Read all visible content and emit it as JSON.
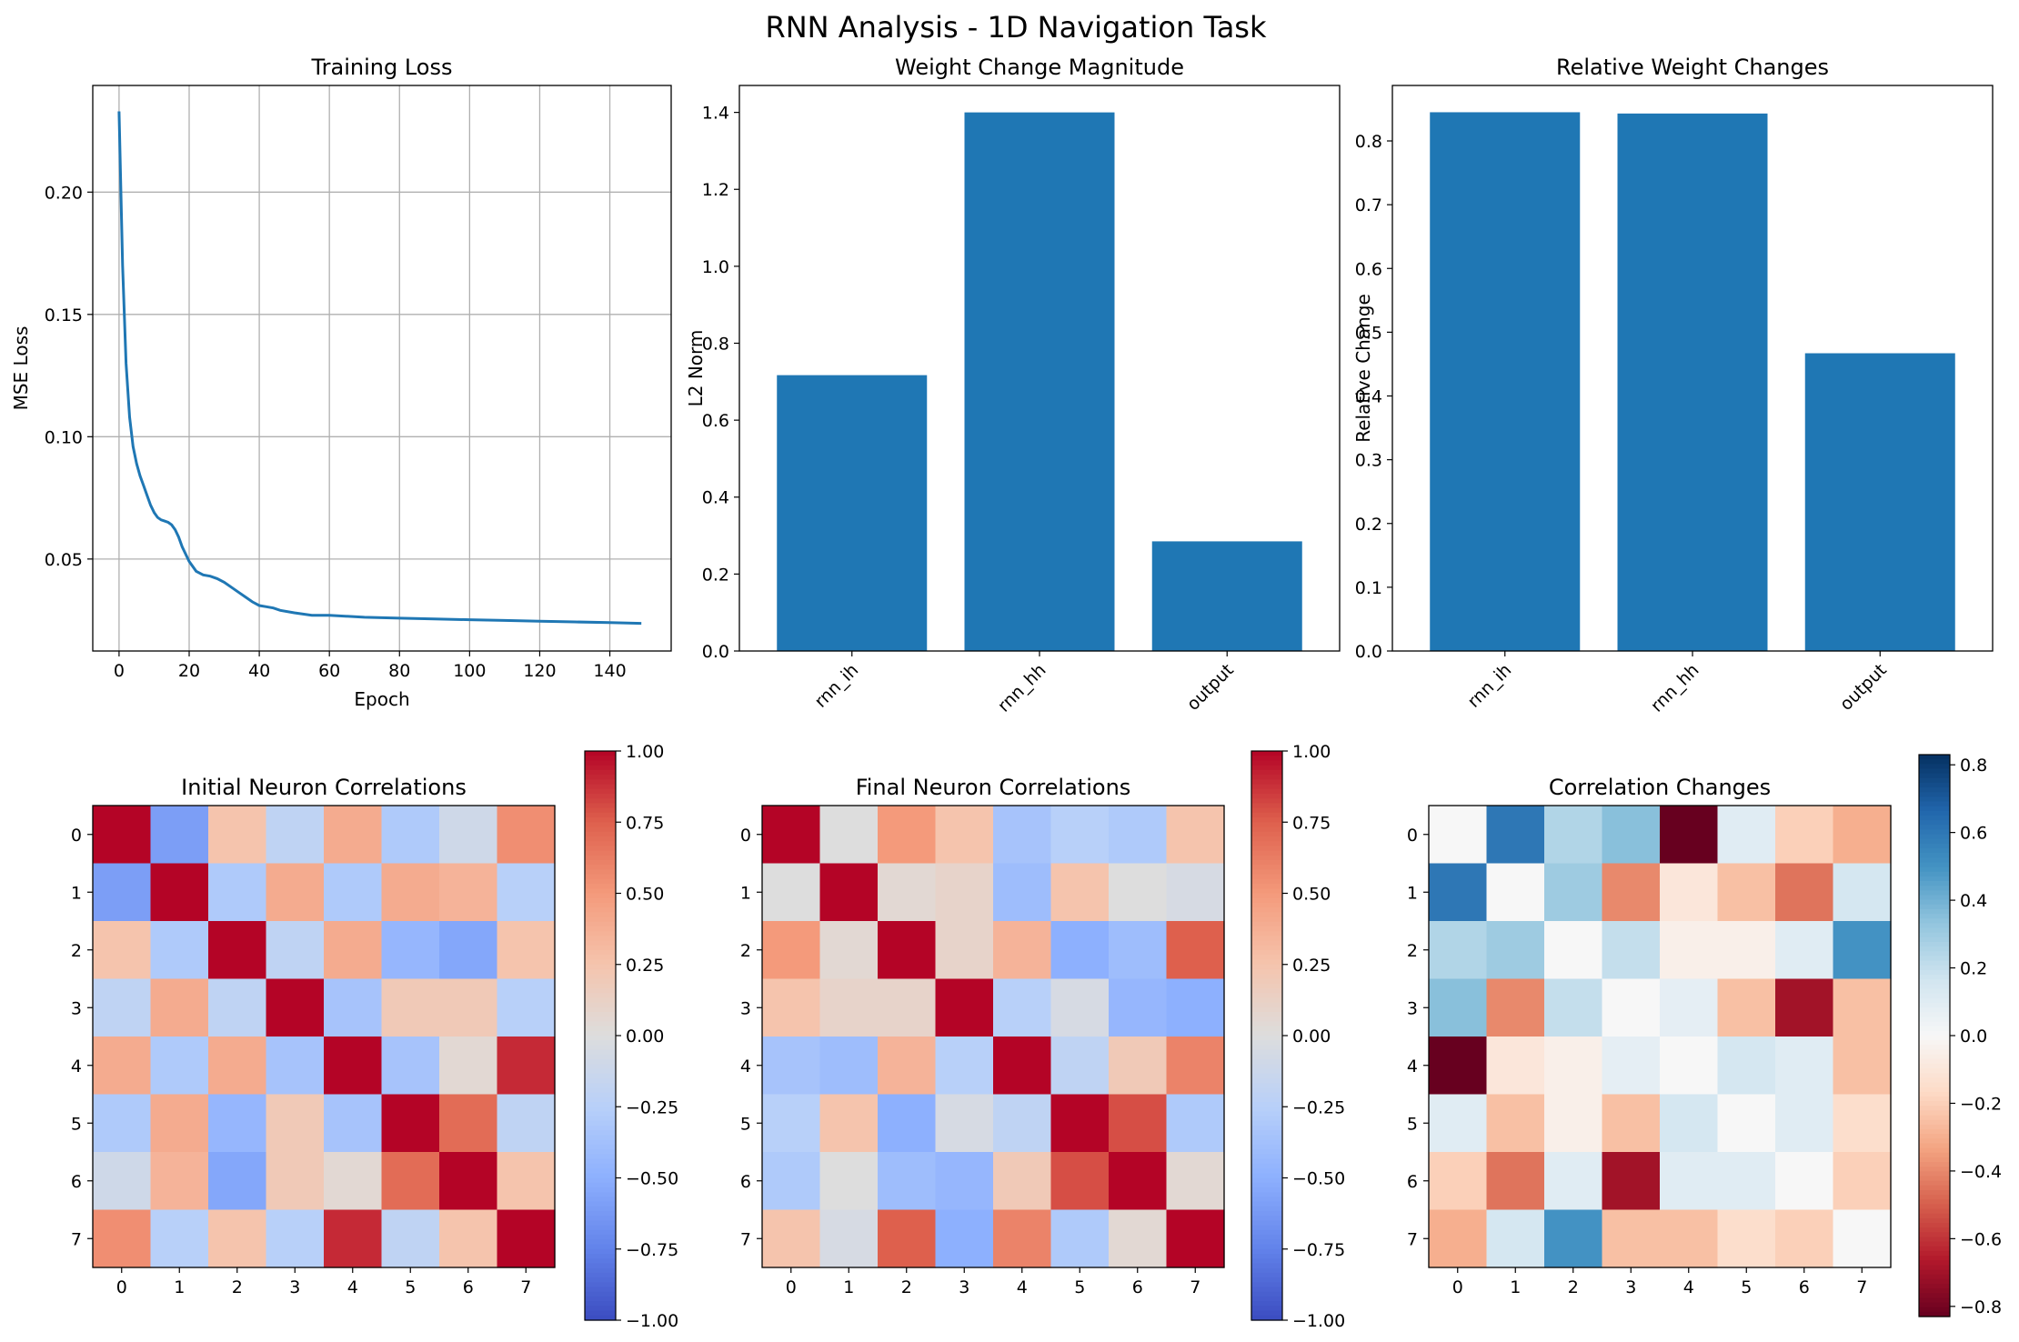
{
  "figure": {
    "title": "RNN Analysis - 1D Navigation Task"
  },
  "chart_data": [
    {
      "id": "loss",
      "type": "line",
      "title": "Training Loss",
      "xlabel": "Epoch",
      "ylabel": "MSE Loss",
      "xlim": [
        -7.5,
        157.5
      ],
      "ylim": [
        0.0124,
        0.2436
      ],
      "grid": true,
      "xticks": [
        0,
        20,
        40,
        60,
        80,
        100,
        120,
        140
      ],
      "yticks": [
        0.05,
        0.1,
        0.15,
        0.2
      ],
      "ytick_labels": [
        "0.05",
        "0.10",
        "0.15",
        "0.20"
      ],
      "color": "#1f77b4",
      "x": [
        0,
        1,
        2,
        3,
        4,
        5,
        6,
        7,
        8,
        9,
        10,
        11,
        12,
        13,
        14,
        15,
        16,
        17,
        18,
        20,
        22,
        24,
        26,
        28,
        30,
        32,
        34,
        36,
        38,
        40,
        42,
        44,
        46,
        50,
        55,
        60,
        70,
        80,
        90,
        100,
        110,
        120,
        130,
        140,
        149
      ],
      "y": [
        0.233,
        0.17,
        0.13,
        0.108,
        0.096,
        0.089,
        0.084,
        0.08,
        0.076,
        0.072,
        0.069,
        0.067,
        0.066,
        0.0655,
        0.065,
        0.064,
        0.062,
        0.059,
        0.055,
        0.049,
        0.045,
        0.0435,
        0.043,
        0.042,
        0.0405,
        0.0385,
        0.0365,
        0.0345,
        0.0325,
        0.031,
        0.0305,
        0.03,
        0.029,
        0.028,
        0.027,
        0.027,
        0.0262,
        0.0258,
        0.0255,
        0.0252,
        0.0249,
        0.0246,
        0.0243,
        0.024,
        0.0237
      ]
    },
    {
      "id": "wmag",
      "type": "bar",
      "title": "Weight Change Magnitude",
      "xlabel": "",
      "ylabel": "L2 Norm",
      "categories": [
        "rnn_ih",
        "rnn_hh",
        "output"
      ],
      "values": [
        0.717,
        1.4,
        0.285
      ],
      "ylim": [
        0,
        1.47
      ],
      "yticks": [
        0.0,
        0.2,
        0.4,
        0.6,
        0.8,
        1.0,
        1.2,
        1.4
      ],
      "ytick_labels": [
        "0.0",
        "0.2",
        "0.4",
        "0.6",
        "0.8",
        "1.0",
        "1.2",
        "1.4"
      ],
      "color": "#1f77b4"
    },
    {
      "id": "wrel",
      "type": "bar",
      "title": "Relative Weight Changes",
      "xlabel": "",
      "ylabel": "Relative Change",
      "categories": [
        "rnn_ih",
        "rnn_hh",
        "output"
      ],
      "values": [
        0.845,
        0.843,
        0.467
      ],
      "ylim": [
        0,
        0.887
      ],
      "yticks": [
        0.0,
        0.1,
        0.2,
        0.3,
        0.4,
        0.5,
        0.6,
        0.7,
        0.8
      ],
      "ytick_labels": [
        "0.0",
        "0.1",
        "0.2",
        "0.3",
        "0.4",
        "0.5",
        "0.6",
        "0.7",
        "0.8"
      ],
      "color": "#1f77b4"
    },
    {
      "id": "initcorr",
      "type": "heatmap",
      "title": "Initial Neuron Correlations",
      "colormap": "coolwarm",
      "vmin": -1,
      "vmax": 1,
      "x_ticks": [
        "0",
        "1",
        "2",
        "3",
        "4",
        "5",
        "6",
        "7"
      ],
      "y_ticks": [
        "0",
        "1",
        "2",
        "3",
        "4",
        "5",
        "6",
        "7"
      ],
      "colorbar_ticks": [
        1.0,
        0.75,
        0.5,
        0.25,
        0.0,
        -0.25,
        -0.5,
        -0.75,
        -1.0
      ],
      "colorbar_labels": [
        "1.00",
        "0.75",
        "0.50",
        "0.25",
        "0.00",
        "−0.25",
        "−0.50",
        "−0.75",
        "−1.00"
      ],
      "matrix": [
        [
          1.0,
          -0.6,
          0.25,
          -0.2,
          0.4,
          -0.3,
          -0.1,
          0.55
        ],
        [
          -0.6,
          1.0,
          -0.3,
          0.4,
          -0.3,
          0.4,
          0.35,
          -0.25
        ],
        [
          0.25,
          -0.3,
          1.0,
          -0.2,
          0.4,
          -0.45,
          -0.55,
          0.25
        ],
        [
          -0.2,
          0.4,
          -0.2,
          1.0,
          -0.35,
          0.2,
          0.2,
          -0.25
        ],
        [
          0.4,
          -0.3,
          0.4,
          -0.35,
          1.0,
          -0.35,
          0.05,
          0.9
        ],
        [
          -0.3,
          0.4,
          -0.45,
          0.2,
          -0.35,
          1.0,
          0.7,
          -0.2
        ],
        [
          -0.1,
          0.35,
          -0.55,
          0.2,
          0.05,
          0.7,
          1.0,
          0.25
        ],
        [
          0.55,
          -0.25,
          0.25,
          -0.25,
          0.9,
          -0.2,
          0.25,
          1.0
        ]
      ]
    },
    {
      "id": "finalcorr",
      "type": "heatmap",
      "title": "Final Neuron Correlations",
      "colormap": "coolwarm",
      "vmin": -1,
      "vmax": 1,
      "x_ticks": [
        "0",
        "1",
        "2",
        "3",
        "4",
        "5",
        "6",
        "7"
      ],
      "y_ticks": [
        "0",
        "1",
        "2",
        "3",
        "4",
        "5",
        "6",
        "7"
      ],
      "colorbar_ticks": [
        1.0,
        0.75,
        0.5,
        0.25,
        0.0,
        -0.25,
        -0.5,
        -0.75,
        -1.0
      ],
      "colorbar_labels": [
        "1.00",
        "0.75",
        "0.50",
        "0.25",
        "0.00",
        "−0.25",
        "−0.50",
        "−0.75",
        "−1.00"
      ],
      "matrix": [
        [
          1.0,
          0.0,
          0.5,
          0.25,
          -0.35,
          -0.25,
          -0.3,
          0.25
        ],
        [
          0.0,
          1.0,
          0.05,
          0.1,
          -0.4,
          0.25,
          0.0,
          -0.05
        ],
        [
          0.5,
          0.05,
          1.0,
          0.1,
          0.35,
          -0.5,
          -0.4,
          0.75
        ],
        [
          0.25,
          0.1,
          0.1,
          1.0,
          -0.25,
          -0.05,
          -0.45,
          -0.5
        ],
        [
          -0.35,
          -0.4,
          0.35,
          -0.25,
          1.0,
          -0.2,
          0.2,
          0.6
        ],
        [
          -0.25,
          0.25,
          -0.5,
          -0.05,
          -0.2,
          1.0,
          0.8,
          -0.3
        ],
        [
          -0.3,
          0.0,
          -0.4,
          -0.45,
          0.2,
          0.8,
          1.0,
          0.05
        ],
        [
          0.25,
          -0.05,
          0.75,
          -0.5,
          0.6,
          -0.3,
          0.05,
          1.0
        ]
      ]
    },
    {
      "id": "corrchange",
      "type": "heatmap",
      "title": "Correlation Changes",
      "colormap": "RdBu",
      "vmin": -0.83,
      "vmax": 0.83,
      "x_ticks": [
        "0",
        "1",
        "2",
        "3",
        "4",
        "5",
        "6",
        "7"
      ],
      "y_ticks": [
        "0",
        "1",
        "2",
        "3",
        "4",
        "5",
        "6",
        "7"
      ],
      "colorbar_ticks": [
        0.8,
        0.6,
        0.4,
        0.2,
        0.0,
        -0.2,
        -0.4,
        -0.6,
        -0.8
      ],
      "colorbar_labels": [
        "0.8",
        "0.6",
        "0.4",
        "0.2",
        "0.0",
        "−0.2",
        "−0.4",
        "−0.6",
        "−0.8"
      ],
      "matrix": [
        [
          0.0,
          0.6,
          0.25,
          0.35,
          -0.83,
          0.1,
          -0.2,
          -0.3
        ],
        [
          0.6,
          0.0,
          0.3,
          -0.4,
          -0.1,
          -0.25,
          -0.45,
          0.15
        ],
        [
          0.25,
          0.3,
          0.0,
          0.2,
          -0.05,
          -0.05,
          0.1,
          0.5
        ],
        [
          0.35,
          -0.4,
          0.2,
          0.0,
          0.08,
          -0.25,
          -0.7,
          -0.25
        ],
        [
          -0.83,
          -0.1,
          -0.05,
          0.08,
          0.0,
          0.15,
          0.1,
          -0.25
        ],
        [
          0.1,
          -0.25,
          -0.05,
          -0.25,
          0.15,
          0.0,
          0.1,
          -0.15
        ],
        [
          -0.2,
          -0.45,
          0.1,
          -0.7,
          0.1,
          0.1,
          0.0,
          -0.2
        ],
        [
          -0.3,
          0.15,
          0.5,
          -0.25,
          -0.25,
          -0.15,
          -0.2,
          0.0
        ]
      ]
    }
  ]
}
